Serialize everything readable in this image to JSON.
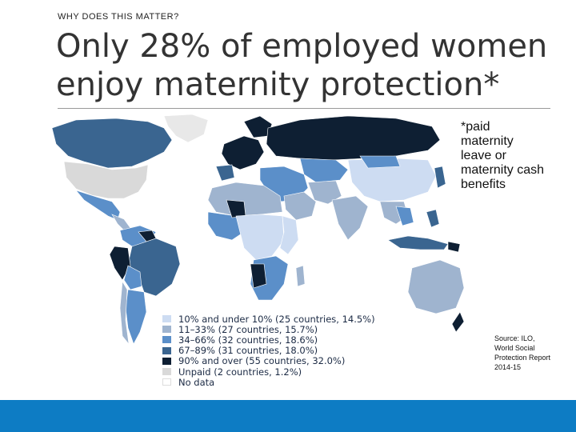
{
  "slide": {
    "kicker": "WHY DOES THIS MATTER?",
    "title_lines": [
      "Only 28% of employed women",
      "enjoy maternity protection*"
    ],
    "footnote_lines": [
      "*paid",
      "maternity",
      "leave or",
      "maternity cash",
      "benefits"
    ],
    "source_lines": [
      "Source: ILO,",
      "World Social",
      "Protection Report",
      "2014-15"
    ],
    "footer_color": "#0d7cc4"
  },
  "map": {
    "type": "choropleth world map",
    "legend": [
      {
        "label": "10% and under 10% (25 countries, 14.5%)",
        "color": "#cddcf2"
      },
      {
        "label": "11–33% (27 countries, 15.7%)",
        "color": "#9fb4cf"
      },
      {
        "label": "34–66% (32 countries, 18.6%)",
        "color": "#5b8fc9"
      },
      {
        "label": "67–89% (31 countries, 18.0%)",
        "color": "#3a6590"
      },
      {
        "label": "90% and over (55 countries, 32.0%)",
        "color": "#0e1f33"
      },
      {
        "label": "Unpaid (2 countries, 1.2%)",
        "color": "#d9d9d9"
      },
      {
        "label": "No data",
        "color": "#ffffff"
      }
    ]
  }
}
